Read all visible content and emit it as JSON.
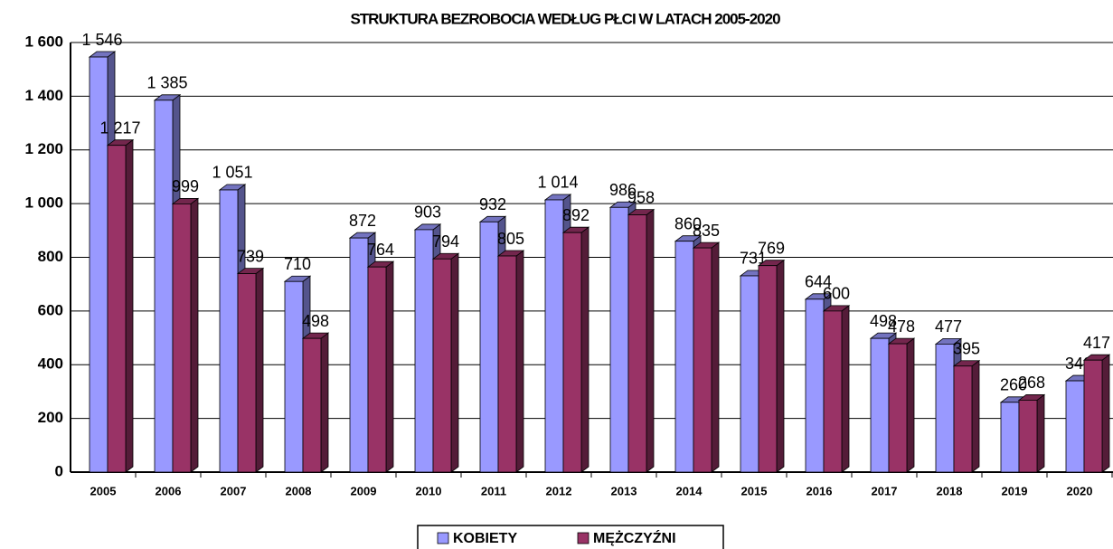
{
  "chart_data": {
    "type": "bar3d",
    "title": "STRUKTURA BEZROBOCIA WEDŁUG PŁCI W LATACH 2005-2020",
    "categories": [
      "2005",
      "2006",
      "2007",
      "2008",
      "2009",
      "2010",
      "2011",
      "2012",
      "2013",
      "2014",
      "2015",
      "2016",
      "2017",
      "2018",
      "2019",
      "2020"
    ],
    "series": [
      {
        "name": "KOBIETY",
        "color": "#9999ff",
        "values": [
          1546,
          1385,
          1051,
          710,
          872,
          903,
          932,
          1014,
          986,
          860,
          731,
          644,
          498,
          477,
          260,
          340
        ],
        "value_labels": [
          "1 546",
          "1 385",
          "1 051",
          "710",
          "872",
          "903",
          "932",
          "1 014",
          "986",
          "860",
          "731",
          "644",
          "498",
          "477",
          "260",
          "340"
        ]
      },
      {
        "name": "MĘŻCZYŹNI",
        "color": "#993366",
        "values": [
          1217,
          999,
          739,
          498,
          764,
          794,
          805,
          892,
          958,
          835,
          769,
          600,
          478,
          395,
          268,
          417
        ],
        "value_labels": [
          "1 217",
          "999",
          "739",
          "498",
          "764",
          "794",
          "805",
          "892",
          "958",
          "835",
          "769",
          "600",
          "478",
          "395",
          "268",
          "417"
        ]
      }
    ],
    "ylim": [
      0,
      1600
    ],
    "yticks": [
      0,
      200,
      400,
      600,
      800,
      {
        "value": 1000,
        "label": "1 000"
      },
      {
        "value": 1200,
        "label": "1 200"
      },
      {
        "value": 1400,
        "label": "1 400"
      },
      {
        "value": 1600,
        "label": "1 600"
      }
    ],
    "grid": true
  }
}
